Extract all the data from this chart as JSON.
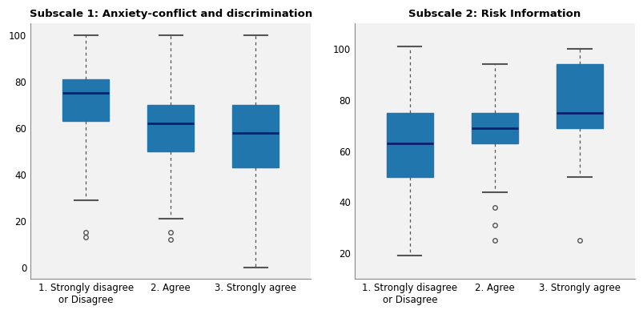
{
  "plot1_title": "Subscale 1: Anxiety-conflict and discrimination",
  "plot2_title": "Subscale 2: Risk Information",
  "box_color": "#2176AE",
  "median_color": "#0a1f6e",
  "whisker_color": "#555555",
  "flier_color": "#555555",
  "bg_color": "#ffffff",
  "xtick_labels": [
    "1. Strongly disagree\nor Disagree",
    "2. Agree",
    "3. Strongly agree"
  ],
  "plot1": {
    "boxes": [
      {
        "q1": 63,
        "median": 75,
        "q3": 81,
        "whislo": 29,
        "whishi": 100,
        "fliers": [
          15,
          13
        ]
      },
      {
        "q1": 50,
        "median": 62,
        "q3": 70,
        "whislo": 21,
        "whishi": 100,
        "fliers": [
          15,
          12
        ]
      },
      {
        "q1": 43,
        "median": 58,
        "q3": 70,
        "whislo": 0,
        "whishi": 100,
        "fliers": []
      }
    ],
    "ylim": [
      -5,
      105
    ],
    "yticks": [
      0,
      20,
      40,
      60,
      80,
      100
    ]
  },
  "plot2": {
    "boxes": [
      {
        "q1": 50,
        "median": 63,
        "q3": 75,
        "whislo": 19,
        "whishi": 101,
        "fliers": []
      },
      {
        "q1": 63,
        "median": 69,
        "q3": 75,
        "whislo": 44,
        "whishi": 94,
        "fliers": [
          38,
          31,
          25
        ]
      },
      {
        "q1": 69,
        "median": 75,
        "q3": 94,
        "whislo": 50,
        "whishi": 100,
        "fliers": [
          25
        ]
      }
    ],
    "ylim": [
      10,
      110
    ],
    "yticks": [
      20,
      40,
      60,
      80,
      100
    ]
  }
}
